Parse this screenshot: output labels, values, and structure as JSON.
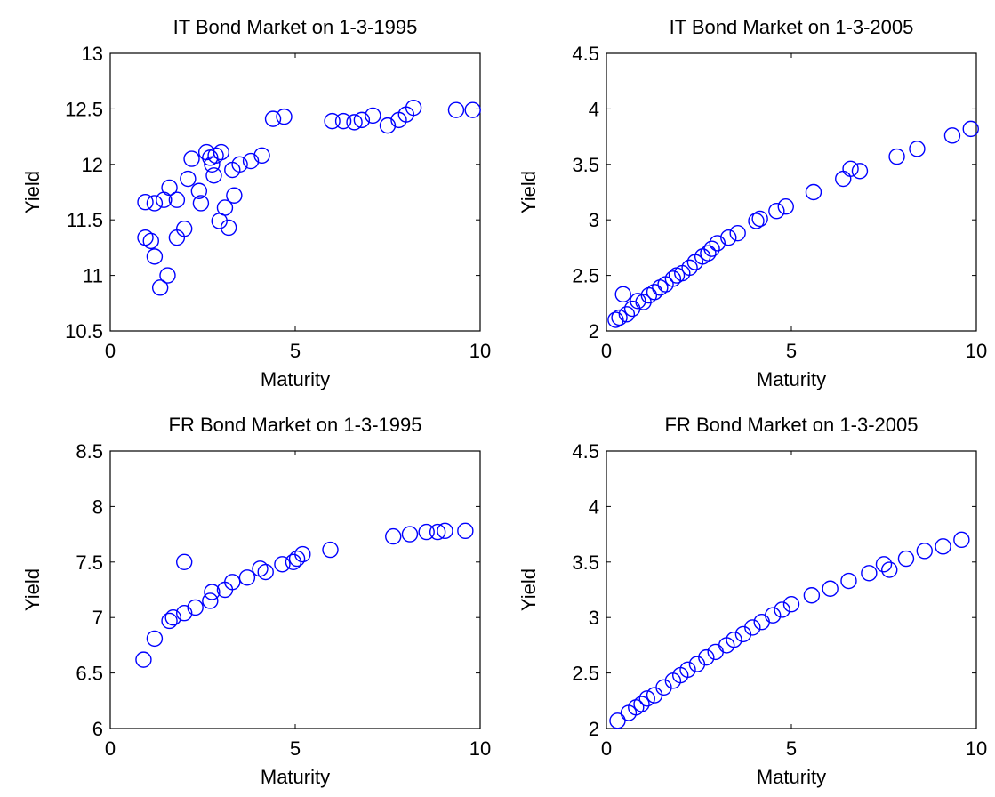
{
  "chart_data": [
    {
      "type": "scatter",
      "title": "IT Bond Market on 1-3-1995",
      "xlabel": "Maturity",
      "ylabel": "Yield",
      "xlim": [
        0,
        10
      ],
      "ylim": [
        10.5,
        13
      ],
      "xticks": [
        0,
        5,
        10
      ],
      "yticks": [
        10.5,
        11,
        11.5,
        12,
        12.5,
        13
      ],
      "xtick_labels": [
        "0",
        "5",
        "10"
      ],
      "ytick_labels": [
        "10.5",
        "11",
        "11.5",
        "12",
        "12.5",
        "13"
      ],
      "marker": "circle",
      "color": "#0000ff",
      "points": [
        [
          0.95,
          11.66
        ],
        [
          1.2,
          11.65
        ],
        [
          1.45,
          11.68
        ],
        [
          1.6,
          11.79
        ],
        [
          1.8,
          11.68
        ],
        [
          0.95,
          11.34
        ],
        [
          1.1,
          11.31
        ],
        [
          1.2,
          11.17
        ],
        [
          1.35,
          10.89
        ],
        [
          1.55,
          11.0
        ],
        [
          1.8,
          11.34
        ],
        [
          2.0,
          11.42
        ],
        [
          2.1,
          11.87
        ],
        [
          2.2,
          12.05
        ],
        [
          2.4,
          11.76
        ],
        [
          2.45,
          11.65
        ],
        [
          2.6,
          12.11
        ],
        [
          2.7,
          12.06
        ],
        [
          2.75,
          12.0
        ],
        [
          2.8,
          11.9
        ],
        [
          2.85,
          12.08
        ],
        [
          2.95,
          11.49
        ],
        [
          3.0,
          12.11
        ],
        [
          3.1,
          11.61
        ],
        [
          3.2,
          11.43
        ],
        [
          3.3,
          11.95
        ],
        [
          3.35,
          11.72
        ],
        [
          3.5,
          12.0
        ],
        [
          3.8,
          12.03
        ],
        [
          4.1,
          12.08
        ],
        [
          4.4,
          12.41
        ],
        [
          4.7,
          12.43
        ],
        [
          6.0,
          12.39
        ],
        [
          6.3,
          12.39
        ],
        [
          6.6,
          12.38
        ],
        [
          6.8,
          12.4
        ],
        [
          7.1,
          12.44
        ],
        [
          7.5,
          12.35
        ],
        [
          7.8,
          12.4
        ],
        [
          8.0,
          12.45
        ],
        [
          8.2,
          12.51
        ],
        [
          9.35,
          12.49
        ],
        [
          9.8,
          12.49
        ]
      ]
    },
    {
      "type": "scatter",
      "title": "IT Bond Market on 1-3-2005",
      "xlabel": "Maturity",
      "ylabel": "Yield",
      "xlim": [
        0,
        10
      ],
      "ylim": [
        2,
        4.5
      ],
      "xticks": [
        0,
        5,
        10
      ],
      "yticks": [
        2,
        2.5,
        3,
        3.5,
        4,
        4.5
      ],
      "xtick_labels": [
        "0",
        "5",
        "10"
      ],
      "ytick_labels": [
        "2",
        "2.5",
        "3",
        "3.5",
        "4",
        "4.5"
      ],
      "marker": "circle",
      "color": "#0000ff",
      "points": [
        [
          0.25,
          2.1
        ],
        [
          0.35,
          2.12
        ],
        [
          0.45,
          2.33
        ],
        [
          0.55,
          2.15
        ],
        [
          0.7,
          2.2
        ],
        [
          0.85,
          2.27
        ],
        [
          1.0,
          2.26
        ],
        [
          1.15,
          2.32
        ],
        [
          1.3,
          2.35
        ],
        [
          1.45,
          2.39
        ],
        [
          1.6,
          2.42
        ],
        [
          1.8,
          2.47
        ],
        [
          1.9,
          2.5
        ],
        [
          2.05,
          2.52
        ],
        [
          2.25,
          2.57
        ],
        [
          2.4,
          2.62
        ],
        [
          2.6,
          2.67
        ],
        [
          2.75,
          2.7
        ],
        [
          2.85,
          2.74
        ],
        [
          3.0,
          2.79
        ],
        [
          3.3,
          2.84
        ],
        [
          3.55,
          2.88
        ],
        [
          4.05,
          2.99
        ],
        [
          4.15,
          3.01
        ],
        [
          4.6,
          3.08
        ],
        [
          4.85,
          3.12
        ],
        [
          5.6,
          3.25
        ],
        [
          6.4,
          3.37
        ],
        [
          6.6,
          3.46
        ],
        [
          6.85,
          3.44
        ],
        [
          7.85,
          3.57
        ],
        [
          8.4,
          3.64
        ],
        [
          9.35,
          3.76
        ],
        [
          9.85,
          3.82
        ]
      ]
    },
    {
      "type": "scatter",
      "title": "FR Bond Market on 1-3-1995",
      "xlabel": "Maturity",
      "ylabel": "Yield",
      "xlim": [
        0,
        10
      ],
      "ylim": [
        6,
        8.5
      ],
      "xticks": [
        0,
        5,
        10
      ],
      "yticks": [
        6,
        6.5,
        7,
        7.5,
        8,
        8.5
      ],
      "xtick_labels": [
        "0",
        "5",
        "10"
      ],
      "ytick_labels": [
        "6",
        "6.5",
        "7",
        "7.5",
        "8",
        "8.5"
      ],
      "marker": "circle",
      "color": "#0000ff",
      "points": [
        [
          0.9,
          6.62
        ],
        [
          1.2,
          6.81
        ],
        [
          1.6,
          6.97
        ],
        [
          1.7,
          7.0
        ],
        [
          2.0,
          7.5
        ],
        [
          2.0,
          7.04
        ],
        [
          2.3,
          7.09
        ],
        [
          2.7,
          7.15
        ],
        [
          2.75,
          7.23
        ],
        [
          3.1,
          7.25
        ],
        [
          3.3,
          7.32
        ],
        [
          3.7,
          7.36
        ],
        [
          4.05,
          7.44
        ],
        [
          4.2,
          7.41
        ],
        [
          4.65,
          7.48
        ],
        [
          4.95,
          7.5
        ],
        [
          5.05,
          7.53
        ],
        [
          5.2,
          7.57
        ],
        [
          5.95,
          7.61
        ],
        [
          7.65,
          7.73
        ],
        [
          8.1,
          7.75
        ],
        [
          8.55,
          7.77
        ],
        [
          8.85,
          7.77
        ],
        [
          9.05,
          7.78
        ],
        [
          9.6,
          7.78
        ]
      ]
    },
    {
      "type": "scatter",
      "title": "FR Bond Market on 1-3-2005",
      "xlabel": "Maturity",
      "ylabel": "Yield",
      "xlim": [
        0,
        10
      ],
      "ylim": [
        2,
        4.5
      ],
      "xticks": [
        0,
        5,
        10
      ],
      "yticks": [
        2,
        2.5,
        3,
        3.5,
        4,
        4.5
      ],
      "xtick_labels": [
        "0",
        "5",
        "10"
      ],
      "ytick_labels": [
        "2",
        "2.5",
        "3",
        "3.5",
        "4",
        "4.5"
      ],
      "marker": "circle",
      "color": "#0000ff",
      "points": [
        [
          0.3,
          2.07
        ],
        [
          0.6,
          2.14
        ],
        [
          0.8,
          2.19
        ],
        [
          0.95,
          2.22
        ],
        [
          1.1,
          2.27
        ],
        [
          1.3,
          2.3
        ],
        [
          1.55,
          2.37
        ],
        [
          1.8,
          2.43
        ],
        [
          2.0,
          2.48
        ],
        [
          2.2,
          2.53
        ],
        [
          2.45,
          2.58
        ],
        [
          2.7,
          2.64
        ],
        [
          2.95,
          2.69
        ],
        [
          3.25,
          2.75
        ],
        [
          3.45,
          2.8
        ],
        [
          3.7,
          2.85
        ],
        [
          3.95,
          2.91
        ],
        [
          4.2,
          2.96
        ],
        [
          4.5,
          3.02
        ],
        [
          4.75,
          3.07
        ],
        [
          5.0,
          3.12
        ],
        [
          5.55,
          3.2
        ],
        [
          6.05,
          3.26
        ],
        [
          6.55,
          3.33
        ],
        [
          7.1,
          3.4
        ],
        [
          7.5,
          3.48
        ],
        [
          7.65,
          3.43
        ],
        [
          8.1,
          3.53
        ],
        [
          8.6,
          3.6
        ],
        [
          9.1,
          3.64
        ],
        [
          9.6,
          3.7
        ]
      ]
    }
  ]
}
